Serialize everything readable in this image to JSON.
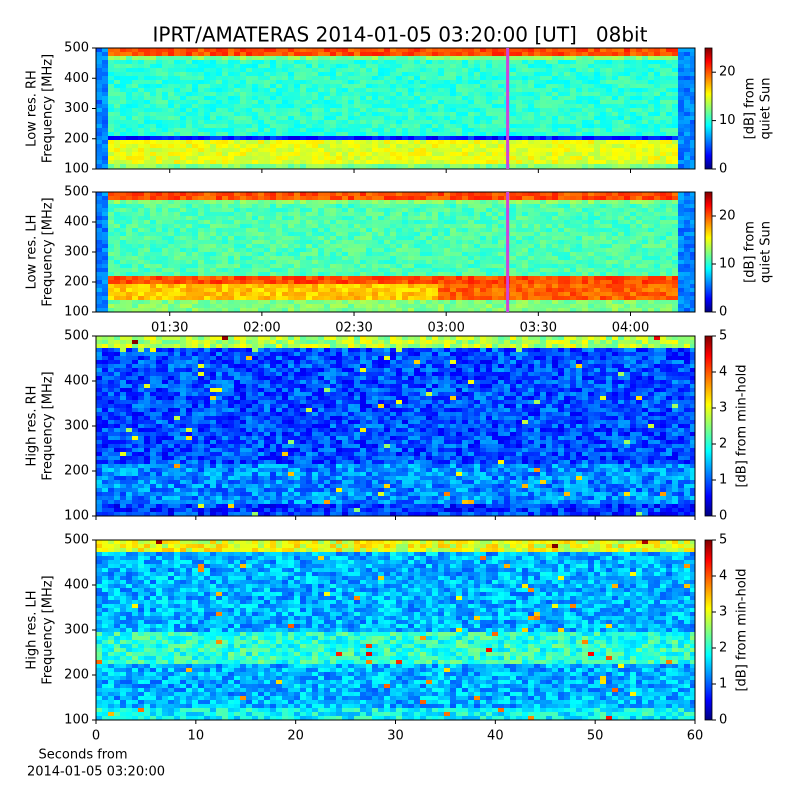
{
  "chart_data": {
    "type": "heatmap",
    "title": "IPRT/AMATERAS 2014-01-05 03:20:00 [UT]   08bit",
    "panels": [
      {
        "ylabel": [
          "Low res. RH",
          "Frequency [MHz]"
        ],
        "ylim": [
          100,
          500
        ],
        "yticks": [
          100,
          200,
          300,
          400,
          500
        ],
        "colorbar_label": [
          "[dB] from",
          "quiet Sun"
        ],
        "clim": [
          0,
          25
        ],
        "cticks": [
          0,
          10,
          20
        ]
      },
      {
        "ylabel": [
          "Low res. LH",
          "Frequency [MHz]"
        ],
        "ylim": [
          100,
          500
        ],
        "yticks": [
          100,
          200,
          300,
          400,
          500
        ],
        "colorbar_label": [
          "[dB] from",
          "quiet Sun"
        ],
        "clim": [
          0,
          25
        ],
        "cticks": [
          0,
          10,
          20
        ]
      },
      {
        "ylabel": [
          "High res. RH",
          "Frequency [MHz]"
        ],
        "ylim": [
          100,
          500
        ],
        "yticks": [
          100,
          200,
          300,
          400,
          500
        ],
        "colorbar_label": [
          "[dB] from min-hold"
        ],
        "clim": [
          0,
          5
        ],
        "cticks": [
          0,
          1,
          2,
          3,
          4,
          5
        ]
      },
      {
        "ylabel": [
          "High res. LH",
          "Frequency [MHz]"
        ],
        "ylim": [
          100,
          500
        ],
        "yticks": [
          100,
          200,
          300,
          400,
          500
        ],
        "colorbar_label": [
          "[dB] from min-hold"
        ],
        "clim": [
          0,
          5
        ],
        "cticks": [
          0,
          1,
          2,
          3,
          4,
          5
        ]
      }
    ],
    "time_axis": {
      "xlim": [
        66,
        261
      ],
      "xticks": [
        {
          "value": 90,
          "label": "01:30"
        },
        {
          "value": 120,
          "label": "02:00"
        },
        {
          "value": 150,
          "label": "02:30"
        },
        {
          "value": 180,
          "label": "03:00"
        },
        {
          "value": 210,
          "label": "03:30"
        },
        {
          "value": 240,
          "label": "04:00"
        }
      ],
      "cursor": 200,
      "cursor_color": "#cc44dd"
    },
    "seconds_axis": {
      "xlim": [
        0,
        60
      ],
      "xticks": [
        0,
        10,
        20,
        30,
        40,
        50,
        60
      ],
      "xlabel": [
        "Seconds from",
        "2014-01-05 03:20:00"
      ]
    }
  }
}
